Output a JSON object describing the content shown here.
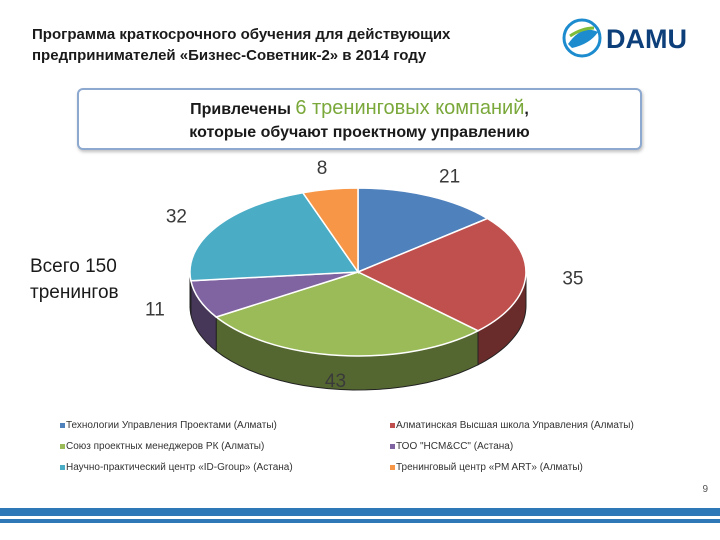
{
  "slide": {
    "title": "Программа краткосрочного обучения для действующих предпринимателей «Бизнес-Советник-2» в 2014 году",
    "logo_text": "DAMU",
    "banner": {
      "prefix": "Привлечены",
      "highlight": "6 тренинговых компаний",
      "suffix": ",",
      "line2": "которые обучают проектному управлению"
    },
    "total_label": "Всего 150 тренингов",
    "page_number": "9",
    "colors": {
      "accent": "#2f78b7",
      "banner_border": "#8ea9cf",
      "highlight": "#7aa83a"
    }
  },
  "chart_data": {
    "type": "pie",
    "style": "3d",
    "legend_position": "bottom",
    "slices": [
      {
        "label": "Технологии Управления Проектами (Алматы)",
        "value": 21,
        "color": "#4f81bd"
      },
      {
        "label": "Алматинская Высшая школа Управления (Алматы)",
        "value": 35,
        "color": "#c0504d"
      },
      {
        "label": "Союз проектных менеджеров РК (Алматы)",
        "value": 43,
        "color": "#9bbb59"
      },
      {
        "label": "ТОО \"HCM&CC\" (Астана)",
        "value": 11,
        "color": "#8064a2"
      },
      {
        "label": "Научно-практический центр «ID-Group» (Астана)",
        "value": 32,
        "color": "#4bacc6"
      },
      {
        "label": "Тренинговый центр «PM ART» (Алматы)",
        "value": 8,
        "color": "#f79646"
      }
    ]
  }
}
